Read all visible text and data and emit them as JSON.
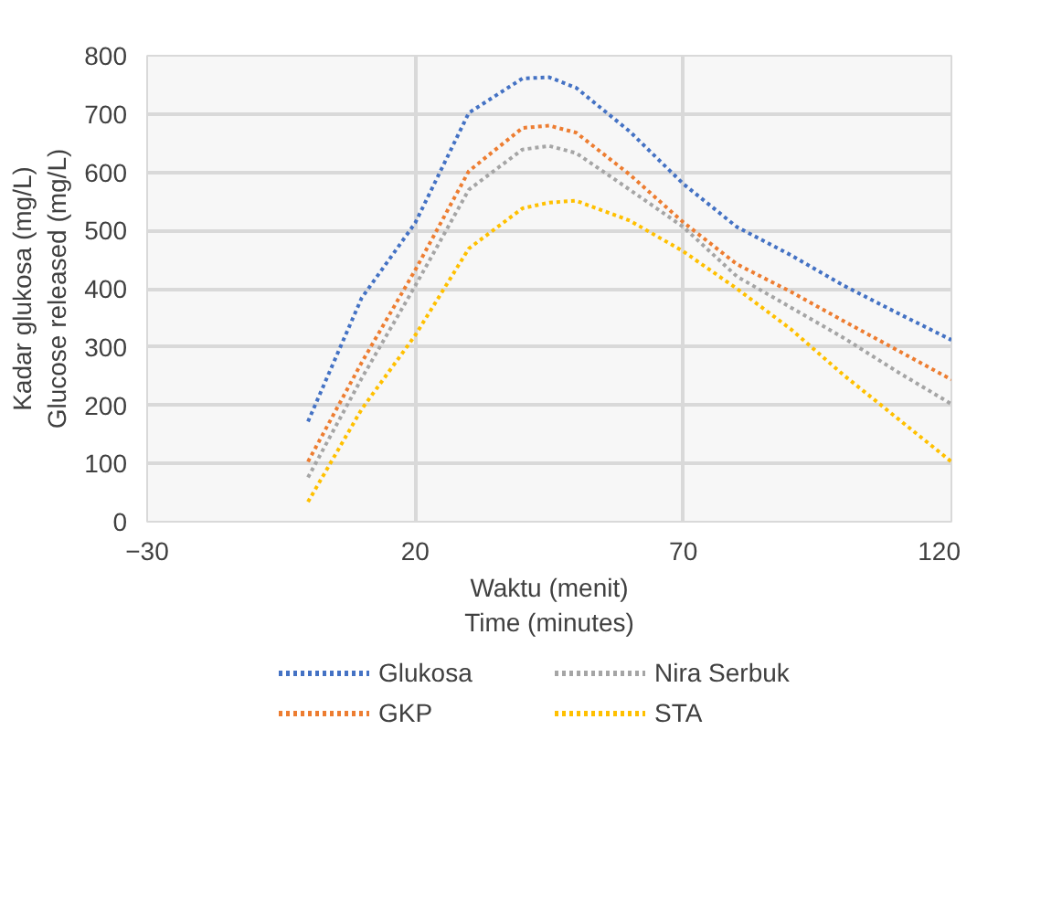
{
  "chart_data": {
    "type": "line",
    "xlabel": "Waktu (menit)\nTime (minutes)",
    "ylabel": "Kadar glukosa (mg/L)\nGlucose released (mg/L)",
    "x": [
      0,
      10,
      20,
      30,
      40,
      45,
      50,
      60,
      70,
      80,
      90,
      100,
      110,
      120
    ],
    "series": [
      {
        "name": "Glukosa",
        "color": "#4472c4",
        "values": [
          172,
          384,
          513,
          702,
          761,
          763,
          745,
          670,
          580,
          506,
          458,
          405,
          358,
          312
        ]
      },
      {
        "name": "GKP",
        "color": "#ed7d31",
        "values": [
          103,
          273,
          432,
          602,
          676,
          680,
          668,
          596,
          514,
          442,
          395,
          344,
          294,
          244
        ]
      },
      {
        "name": "Nira Serbuk",
        "color": "#a5a5a5",
        "values": [
          76,
          246,
          405,
          570,
          639,
          645,
          633,
          570,
          506,
          421,
          368,
          315,
          257,
          202
        ]
      },
      {
        "name": "STA",
        "color": "#ffc000",
        "values": [
          34,
          193,
          320,
          469,
          538,
          548,
          551,
          517,
          464,
          400,
          331,
          251,
          177,
          103
        ]
      }
    ],
    "xlim": [
      -30,
      120
    ],
    "xticks": [
      -30,
      20,
      70,
      120
    ],
    "ylim": [
      0,
      800
    ],
    "yticks": [
      0,
      100,
      200,
      300,
      400,
      500,
      600,
      700,
      800
    ],
    "grid": true,
    "legend": "bottom",
    "line_style": "dotted",
    "marker": "none"
  }
}
